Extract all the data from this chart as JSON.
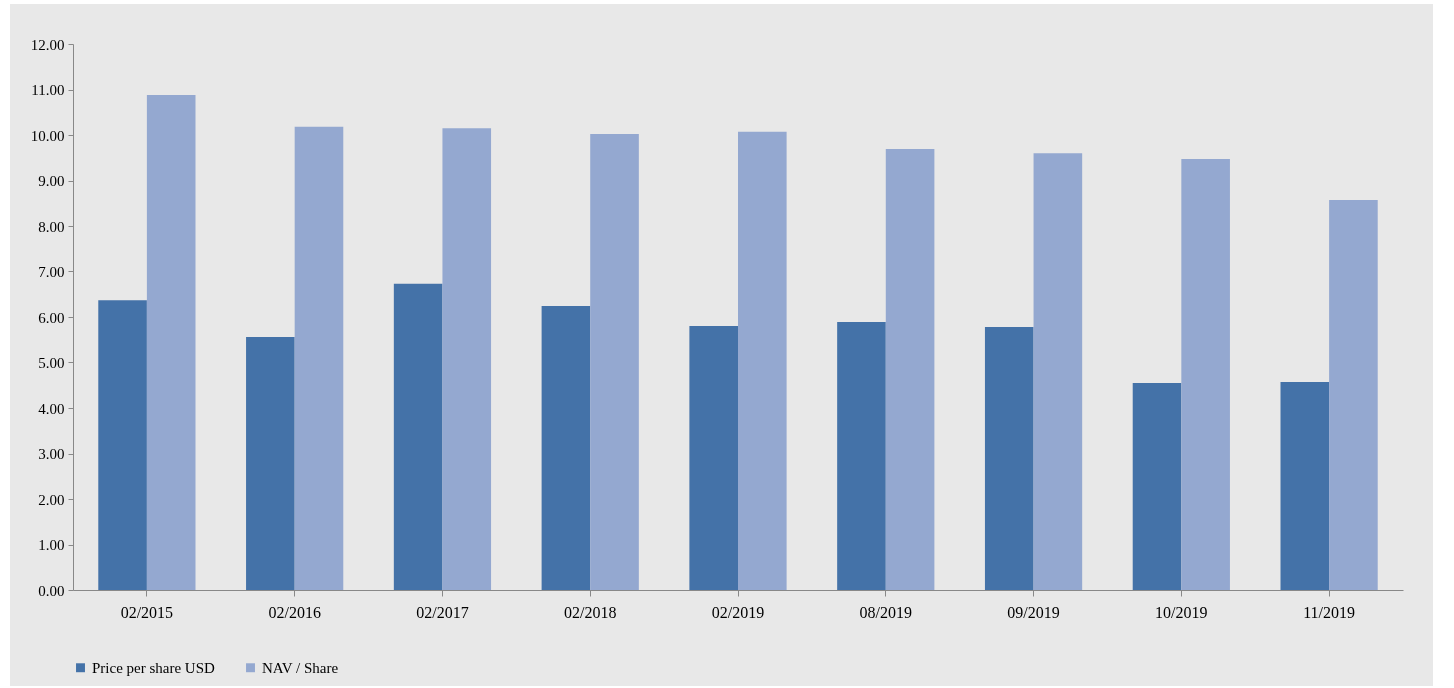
{
  "chart_data": {
    "type": "bar",
    "categories": [
      "02/2015",
      "02/2016",
      "02/2017",
      "02/2018",
      "02/2019",
      "08/2019",
      "09/2019",
      "10/2019",
      "11/2019"
    ],
    "series": [
      {
        "name": "Price per share USD",
        "color": "#4472a8",
        "values": [
          6.37,
          5.56,
          6.73,
          6.24,
          5.8,
          5.89,
          5.78,
          4.55,
          4.57
        ]
      },
      {
        "name": "NAV / Share",
        "color": "#94a8d0",
        "values": [
          10.88,
          10.18,
          10.15,
          10.02,
          10.07,
          9.69,
          9.6,
          9.47,
          8.57
        ]
      }
    ],
    "ylim": [
      0,
      12
    ],
    "yticks": [
      {
        "value": 0,
        "label": "0.00"
      },
      {
        "value": 1,
        "label": "1.00"
      },
      {
        "value": 2,
        "label": "2.00"
      },
      {
        "value": 3,
        "label": "3.00"
      },
      {
        "value": 4,
        "label": "4.00"
      },
      {
        "value": 5,
        "label": "5.00"
      },
      {
        "value": 6,
        "label": "6.00"
      },
      {
        "value": 7,
        "label": "7.00"
      },
      {
        "value": 8,
        "label": "8.00"
      },
      {
        "value": 9,
        "label": "9.00"
      },
      {
        "value": 10,
        "label": "10.00"
      },
      {
        "value": 11,
        "label": "11.00"
      },
      {
        "value": 12,
        "label": "12.00"
      }
    ],
    "grid": false,
    "legend": "bottom"
  }
}
